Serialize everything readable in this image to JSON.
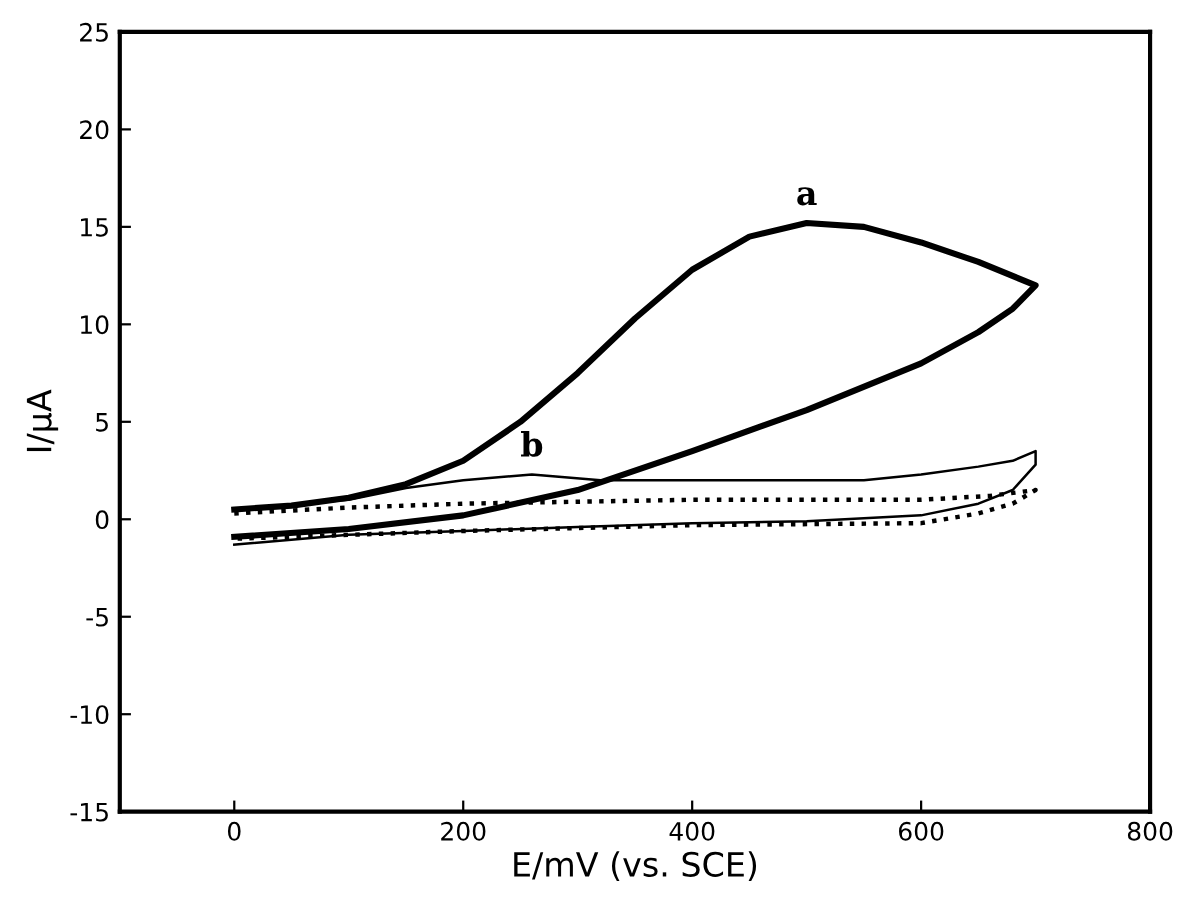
{
  "chart_data": {
    "type": "line",
    "xlabel": "E/mV (vs. SCE)",
    "ylabel": "I/μA",
    "xlim": [
      -100,
      800
    ],
    "xticks": [
      0,
      200,
      400,
      600,
      800
    ],
    "ylim": [
      -15,
      25
    ],
    "yticks": [
      -15,
      -10,
      -5,
      0,
      5,
      10,
      15,
      20,
      25
    ],
    "grid": false,
    "legend": false,
    "marker": "none",
    "series": [
      {
        "name": "a",
        "color": "#000000",
        "line_style": "solid",
        "x": [
          0,
          50,
          100,
          150,
          200,
          250,
          300,
          350,
          400,
          450,
          500,
          550,
          600,
          650,
          700,
          680,
          650,
          600,
          500,
          400,
          300,
          200,
          100,
          0
        ],
        "values": [
          0.5,
          0.7,
          1.1,
          1.8,
          3.0,
          5.0,
          7.5,
          10.3,
          12.8,
          14.5,
          15.2,
          15.0,
          14.2,
          13.2,
          12.0,
          10.8,
          9.6,
          8.0,
          5.6,
          3.5,
          1.5,
          0.2,
          -0.5,
          -0.9
        ]
      },
      {
        "name": "b",
        "color": "#000000",
        "line_style": "solid",
        "x": [
          0,
          100,
          150,
          200,
          260,
          320,
          400,
          550,
          600,
          650,
          680,
          700,
          700,
          680,
          650,
          600,
          500,
          400,
          300,
          200,
          100,
          0
        ],
        "values": [
          0.5,
          1.0,
          1.6,
          2.0,
          2.3,
          2.0,
          2.0,
          2.0,
          2.3,
          2.7,
          3.0,
          3.5,
          2.8,
          1.5,
          0.8,
          0.2,
          -0.1,
          -0.2,
          -0.4,
          -0.6,
          -0.8,
          -1.3
        ]
      },
      {
        "color": "#000000",
        "line_style": "dotted",
        "x": [
          0,
          100,
          200,
          300,
          400,
          600,
          660,
          700,
          680,
          650,
          600,
          400,
          200,
          0
        ],
        "values": [
          0.3,
          0.6,
          0.8,
          0.9,
          1.0,
          1.0,
          1.2,
          1.5,
          0.8,
          0.3,
          -0.2,
          -0.3,
          -0.6,
          -1.0
        ]
      }
    ]
  }
}
